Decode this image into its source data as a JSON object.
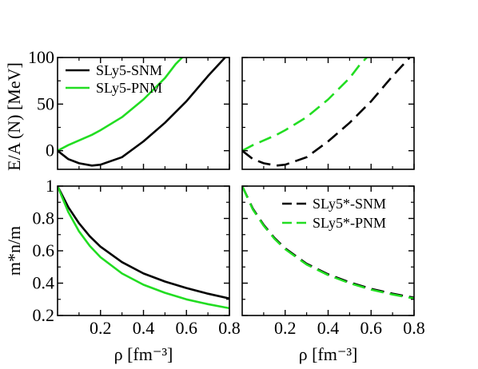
{
  "chart_data": [
    {
      "type": "line",
      "panel": "top-left",
      "ylabel": "E/A (N) [MeV]",
      "xlim": [
        0,
        0.8
      ],
      "ylim": [
        -20,
        100
      ],
      "yticks": [
        "0",
        "50",
        "100"
      ],
      "legend": "top-left",
      "series": [
        {
          "name": "SLy5-SNM",
          "color": "#000000",
          "dash": "solid",
          "x": [
            0,
            0.05,
            0.1,
            0.16,
            0.2,
            0.3,
            0.4,
            0.5,
            0.6,
            0.7,
            0.78
          ],
          "y": [
            0,
            -9,
            -13.5,
            -16,
            -15,
            -7,
            10,
            30,
            53,
            80,
            100
          ]
        },
        {
          "name": "SLy5-PNM",
          "color": "#22dd22",
          "dash": "solid",
          "x": [
            0,
            0.05,
            0.1,
            0.16,
            0.2,
            0.3,
            0.4,
            0.5,
            0.55,
            0.58
          ],
          "y": [
            0,
            6,
            11,
            17,
            22,
            36,
            55,
            78,
            93,
            100
          ]
        }
      ]
    },
    {
      "type": "line",
      "panel": "top-right",
      "xlim": [
        0,
        0.8
      ],
      "ylim": [
        -20,
        100
      ],
      "series": [
        {
          "color": "#000000",
          "dash": "dashed",
          "x": [
            0,
            0.05,
            0.1,
            0.16,
            0.2,
            0.3,
            0.4,
            0.5,
            0.6,
            0.7,
            0.78
          ],
          "y": [
            0,
            -9,
            -13.5,
            -16,
            -15,
            -7,
            10,
            30,
            53,
            80,
            100
          ]
        },
        {
          "color": "#22dd22",
          "dash": "dashed",
          "x": [
            0,
            0.05,
            0.1,
            0.16,
            0.2,
            0.3,
            0.4,
            0.5,
            0.55,
            0.58
          ],
          "y": [
            0,
            6,
            11,
            17,
            22,
            36,
            55,
            78,
            93,
            100
          ]
        }
      ]
    },
    {
      "type": "line",
      "panel": "bottom-left",
      "xlabel": "ρ [fm⁻³]",
      "ylabel": "m*n/m",
      "xlim": [
        0,
        0.8
      ],
      "ylim": [
        0.2,
        1.0
      ],
      "xticks": [
        "0.2",
        "0.4",
        "0.6",
        "0.8"
      ],
      "yticks": [
        "0.2",
        "0.4",
        "0.6",
        "0.8",
        "1"
      ],
      "series": [
        {
          "name": "SNM",
          "color": "#000000",
          "dash": "solid",
          "x": [
            0,
            0.05,
            0.1,
            0.15,
            0.2,
            0.3,
            0.4,
            0.5,
            0.6,
            0.7,
            0.8
          ],
          "y": [
            1.0,
            0.87,
            0.77,
            0.69,
            0.625,
            0.53,
            0.46,
            0.41,
            0.37,
            0.335,
            0.305
          ]
        },
        {
          "name": "PNM",
          "color": "#22dd22",
          "dash": "solid",
          "x": [
            0,
            0.05,
            0.1,
            0.15,
            0.2,
            0.3,
            0.4,
            0.5,
            0.6,
            0.7,
            0.8
          ],
          "y": [
            1.0,
            0.84,
            0.72,
            0.63,
            0.56,
            0.46,
            0.39,
            0.34,
            0.3,
            0.27,
            0.245
          ]
        }
      ]
    },
    {
      "type": "line",
      "panel": "bottom-right",
      "xlabel": "ρ [fm⁻³]",
      "xlim": [
        0,
        0.8
      ],
      "ylim": [
        0.2,
        1.0
      ],
      "xticks": [
        "0.2",
        "0.4",
        "0.6",
        "0.8"
      ],
      "legend": "top-right",
      "series": [
        {
          "name": "SLy5*-SNM",
          "color": "#000000",
          "dash": "dashed",
          "x": [
            0,
            0.05,
            0.1,
            0.15,
            0.2,
            0.3,
            0.4,
            0.5,
            0.6,
            0.7,
            0.8
          ],
          "y": [
            1.0,
            0.86,
            0.76,
            0.68,
            0.615,
            0.52,
            0.455,
            0.405,
            0.365,
            0.335,
            0.31
          ]
        },
        {
          "name": "SLy5*-PNM",
          "color": "#22dd22",
          "dash": "dashed",
          "x": [
            0,
            0.05,
            0.1,
            0.15,
            0.2,
            0.3,
            0.4,
            0.5,
            0.6,
            0.7,
            0.8
          ],
          "y": [
            1.0,
            0.855,
            0.755,
            0.675,
            0.61,
            0.515,
            0.45,
            0.4,
            0.36,
            0.33,
            0.305
          ]
        }
      ]
    }
  ]
}
